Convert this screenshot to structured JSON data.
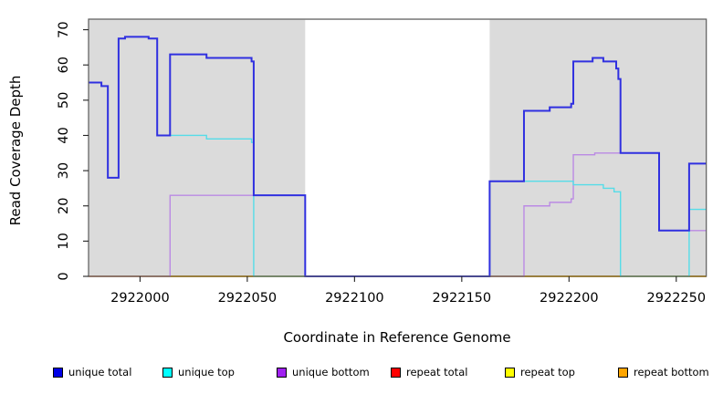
{
  "chart_data": {
    "type": "line",
    "title": "",
    "xlabel": "Coordinate in Reference Genome",
    "ylabel": "Read Coverage Depth",
    "xlim": [
      2921976,
      2922264
    ],
    "ylim": [
      0,
      73
    ],
    "x_ticks": [
      2922000,
      2922050,
      2922100,
      2922150,
      2922200,
      2922250
    ],
    "y_ticks": [
      0,
      10,
      20,
      30,
      40,
      50,
      60,
      70
    ],
    "grid": false,
    "legend_position": "bottom",
    "panel_bg": "#dbdbdb",
    "gap_region": [
      2922077,
      2922163
    ],
    "shaded_regions": [
      [
        2921976,
        2922077
      ],
      [
        2922163,
        2922264
      ]
    ],
    "series": [
      {
        "name": "repeat total",
        "color": "#e05555",
        "width": 1.4,
        "steps": [
          [
            2921976,
            0
          ],
          [
            2922264,
            0
          ]
        ]
      },
      {
        "name": "repeat top",
        "color": "#ffff00",
        "width": 1.4,
        "steps": [
          [
            2921976,
            0
          ],
          [
            2922264,
            0
          ]
        ]
      },
      {
        "name": "repeat bottom",
        "color": "#ffa500",
        "width": 1.4,
        "steps": [
          [
            2921976,
            0
          ],
          [
            2922264,
            0
          ]
        ]
      },
      {
        "name": "unique bottom",
        "color": "#bb8ae4",
        "width": 1.4,
        "steps": [
          [
            2921976,
            0
          ],
          [
            2922014,
            23
          ],
          [
            2922077,
            0
          ],
          [
            2922179,
            20
          ],
          [
            2922191,
            21
          ],
          [
            2922201,
            22
          ],
          [
            2922202,
            34.5
          ],
          [
            2922212,
            35
          ],
          [
            2922242,
            13
          ],
          [
            2922264,
            13
          ]
        ]
      },
      {
        "name": "unique top",
        "color": "#55dce8",
        "width": 1.4,
        "steps": [
          [
            2921976,
            55
          ],
          [
            2921982,
            54
          ],
          [
            2921985,
            28
          ],
          [
            2921990,
            67.5
          ],
          [
            2921993,
            68
          ],
          [
            2922004,
            67.5
          ],
          [
            2922008,
            40
          ],
          [
            2922031,
            39
          ],
          [
            2922052,
            38
          ],
          [
            2922053,
            0
          ],
          [
            2922163,
            27
          ],
          [
            2922202,
            26
          ],
          [
            2922216,
            25
          ],
          [
            2922221,
            24
          ],
          [
            2922224,
            0
          ],
          [
            2922256,
            19
          ],
          [
            2922264,
            19
          ]
        ]
      },
      {
        "name": "unique total",
        "color": "#3030e0",
        "width": 2,
        "steps": [
          [
            2921976,
            55
          ],
          [
            2921982,
            54
          ],
          [
            2921985,
            28
          ],
          [
            2921990,
            67.5
          ],
          [
            2921993,
            68
          ],
          [
            2922004,
            67.5
          ],
          [
            2922008,
            40
          ],
          [
            2922014,
            63
          ],
          [
            2922031,
            62
          ],
          [
            2922052,
            61
          ],
          [
            2922053,
            23
          ],
          [
            2922077,
            0
          ],
          [
            2922163,
            27
          ],
          [
            2922179,
            47
          ],
          [
            2922191,
            48
          ],
          [
            2922201,
            49
          ],
          [
            2922202,
            61
          ],
          [
            2922211,
            62
          ],
          [
            2922216,
            61
          ],
          [
            2922222,
            59
          ],
          [
            2922223,
            56
          ],
          [
            2922224,
            35
          ],
          [
            2922242,
            13
          ],
          [
            2922256,
            32
          ],
          [
            2922264,
            32
          ]
        ]
      }
    ],
    "baseline_segments": [
      {
        "from": 2921976,
        "to": 2922014,
        "color": "#d4647f"
      },
      {
        "from": 2922014,
        "to": 2922053,
        "color": "#ffa500"
      },
      {
        "from": 2922053,
        "to": 2922077,
        "color": "#93d793"
      },
      {
        "from": 2922077,
        "to": 2922163,
        "color": "#655ae8"
      },
      {
        "from": 2922163,
        "to": 2922179,
        "color": "#a964e0"
      },
      {
        "from": 2922179,
        "to": 2922224,
        "color": "#ffa500"
      },
      {
        "from": 2922224,
        "to": 2922256,
        "color": "#93d793"
      },
      {
        "from": 2922256,
        "to": 2922264,
        "color": "#ffa500"
      }
    ]
  },
  "legend": {
    "items": [
      {
        "label": "unique total",
        "color": "#0000e6"
      },
      {
        "label": "unique top",
        "color": "#00ffff"
      },
      {
        "label": "unique bottom",
        "color": "#a020f0"
      },
      {
        "label": "repeat total",
        "color": "#ff0000"
      },
      {
        "label": "repeat top",
        "color": "#ffff00"
      },
      {
        "label": "repeat bottom",
        "color": "#ffa500"
      }
    ]
  }
}
